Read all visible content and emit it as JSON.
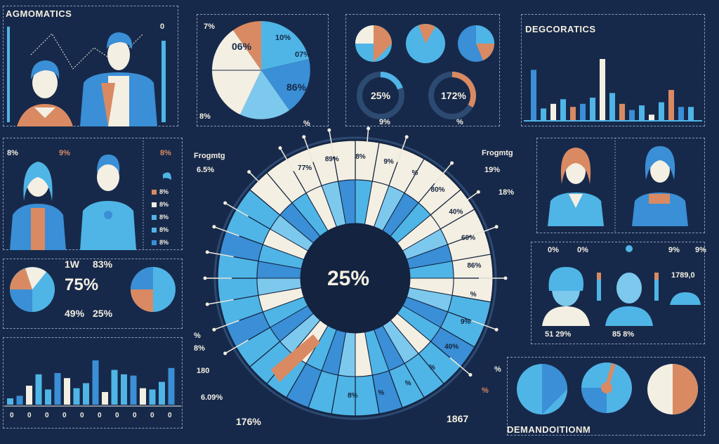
{
  "titles": {
    "top_left": "AGMOMATICS",
    "top_right": "DEGCORATICS",
    "bottom_right": "DEMANDOITIONM"
  },
  "center": {
    "value": "25%",
    "ring_labels": [
      "77%",
      "89%",
      "8%",
      "9%",
      "%",
      "80%",
      "40%",
      "60%",
      "86%",
      "%",
      "9%",
      "40%",
      "%",
      "%",
      "%",
      "8%"
    ]
  },
  "donuts": {
    "left_value": "25%",
    "right_value": "172%",
    "under_left": "9%",
    "under_right": "%"
  },
  "pie_top": {
    "labels": [
      "06%",
      "10%",
      "07%",
      "86%"
    ],
    "corner": "7%",
    "bl": "8%",
    "br": "%"
  },
  "left_mid": {
    "labels": [
      "8%",
      "9%",
      "8%"
    ],
    "legend": [
      "8%",
      "8%",
      "8%",
      "8%",
      "8%"
    ]
  },
  "left_stats": {
    "top": "1W",
    "big": "75%",
    "small": "83%",
    "a": "49%",
    "b": "25%"
  },
  "left_center_labels": [
    "Frogmtg",
    "6.5%",
    "%",
    "8%",
    "180",
    "6.09%"
  ],
  "right_center_labels": [
    "Frogmtg",
    "19%",
    "18%",
    "%",
    "%"
  ],
  "bottom_center": {
    "left": "176%",
    "right": "1867"
  },
  "profiles_right": {
    "labels": [
      "0%",
      "0%",
      "9%",
      "9%"
    ],
    "nums": [
      "1789,0",
      "51 29%",
      "85 8%"
    ]
  },
  "chart_data": [
    {
      "type": "bar",
      "title": "",
      "values": [
        66,
        16,
        22,
        28,
        18,
        22,
        30,
        80,
        36,
        22,
        14,
        20,
        8,
        24,
        40,
        18,
        18
      ],
      "ylim": [
        0,
        100
      ]
    },
    {
      "type": "bar",
      "title": "",
      "values": [
        10,
        14,
        30,
        48,
        24,
        50,
        42,
        26,
        34,
        70,
        20,
        55,
        48,
        46,
        26,
        24,
        36,
        58
      ],
      "ylim": [
        0,
        100
      ]
    }
  ],
  "bottom_left_ticks": [
    "0",
    "0",
    "0",
    "0",
    "0",
    "0",
    "0",
    "0",
    "0",
    "0"
  ],
  "colors": {
    "bg": "#17294a",
    "cream": "#f3efe2",
    "blue": "#4fb5e6",
    "blue2": "#3a8fd6",
    "orange": "#d98a62",
    "dark": "#14233f"
  }
}
